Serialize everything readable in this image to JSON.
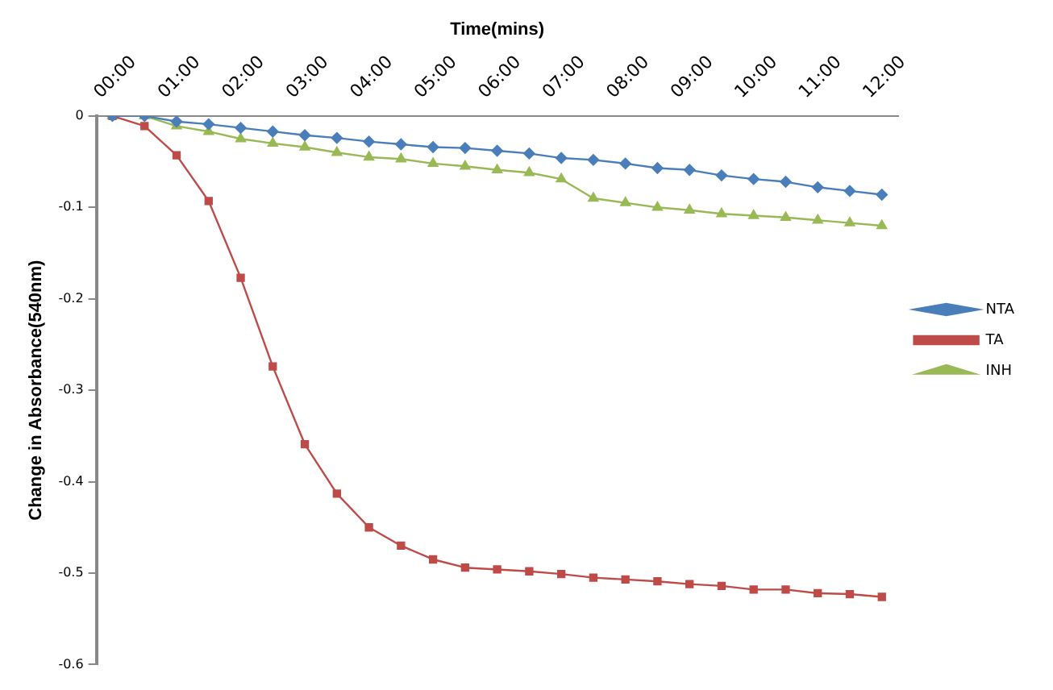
{
  "chart_data": {
    "type": "line",
    "xlabel": "Time(mins)",
    "ylabel": "Change in Absorbance(540nm)",
    "categories": [
      "00:00",
      null,
      "01:00",
      null,
      "02:00",
      null,
      "03:00",
      null,
      "04:00",
      null,
      "05:00",
      null,
      "06:00",
      null,
      "07:00",
      null,
      "08:00",
      null,
      "09:00",
      null,
      "10:00",
      null,
      "11:00",
      null,
      "12:00"
    ],
    "series": [
      {
        "name": "NTA",
        "color": "#4a7ebb",
        "marker": "diamond",
        "values": [
          0,
          0,
          -0.006,
          -0.009,
          -0.013,
          -0.017,
          -0.021,
          -0.024,
          -0.028,
          -0.031,
          -0.034,
          -0.035,
          -0.038,
          -0.041,
          -0.046,
          -0.048,
          -0.052,
          -0.057,
          -0.059,
          -0.065,
          -0.069,
          -0.072,
          -0.078,
          -0.082,
          -0.086
        ]
      },
      {
        "name": "TA",
        "color": "#be4b48",
        "marker": "square",
        "values": [
          0,
          -0.011,
          -0.043,
          -0.093,
          -0.177,
          -0.274,
          -0.359,
          -0.413,
          -0.45,
          -0.47,
          -0.485,
          -0.494,
          -0.496,
          -0.498,
          -0.501,
          -0.505,
          -0.507,
          -0.509,
          -0.512,
          -0.514,
          -0.518,
          -0.518,
          -0.522,
          -0.523,
          -0.526
        ]
      },
      {
        "name": "INH",
        "color": "#98b954",
        "marker": "triangle",
        "values": [
          0,
          0,
          -0.011,
          -0.017,
          -0.025,
          -0.03,
          -0.034,
          -0.04,
          -0.045,
          -0.047,
          -0.052,
          -0.055,
          -0.059,
          -0.062,
          -0.069,
          -0.09,
          -0.095,
          -0.1,
          -0.103,
          -0.107,
          -0.109,
          -0.111,
          -0.114,
          -0.117,
          -0.12
        ]
      }
    ],
    "ylim": [
      -0.6,
      0
    ],
    "yticks": [
      -0.6,
      -0.5,
      -0.4,
      -0.3,
      -0.2,
      -0.1,
      0
    ],
    "grid": false,
    "legend": "right",
    "line_style": "solid"
  }
}
